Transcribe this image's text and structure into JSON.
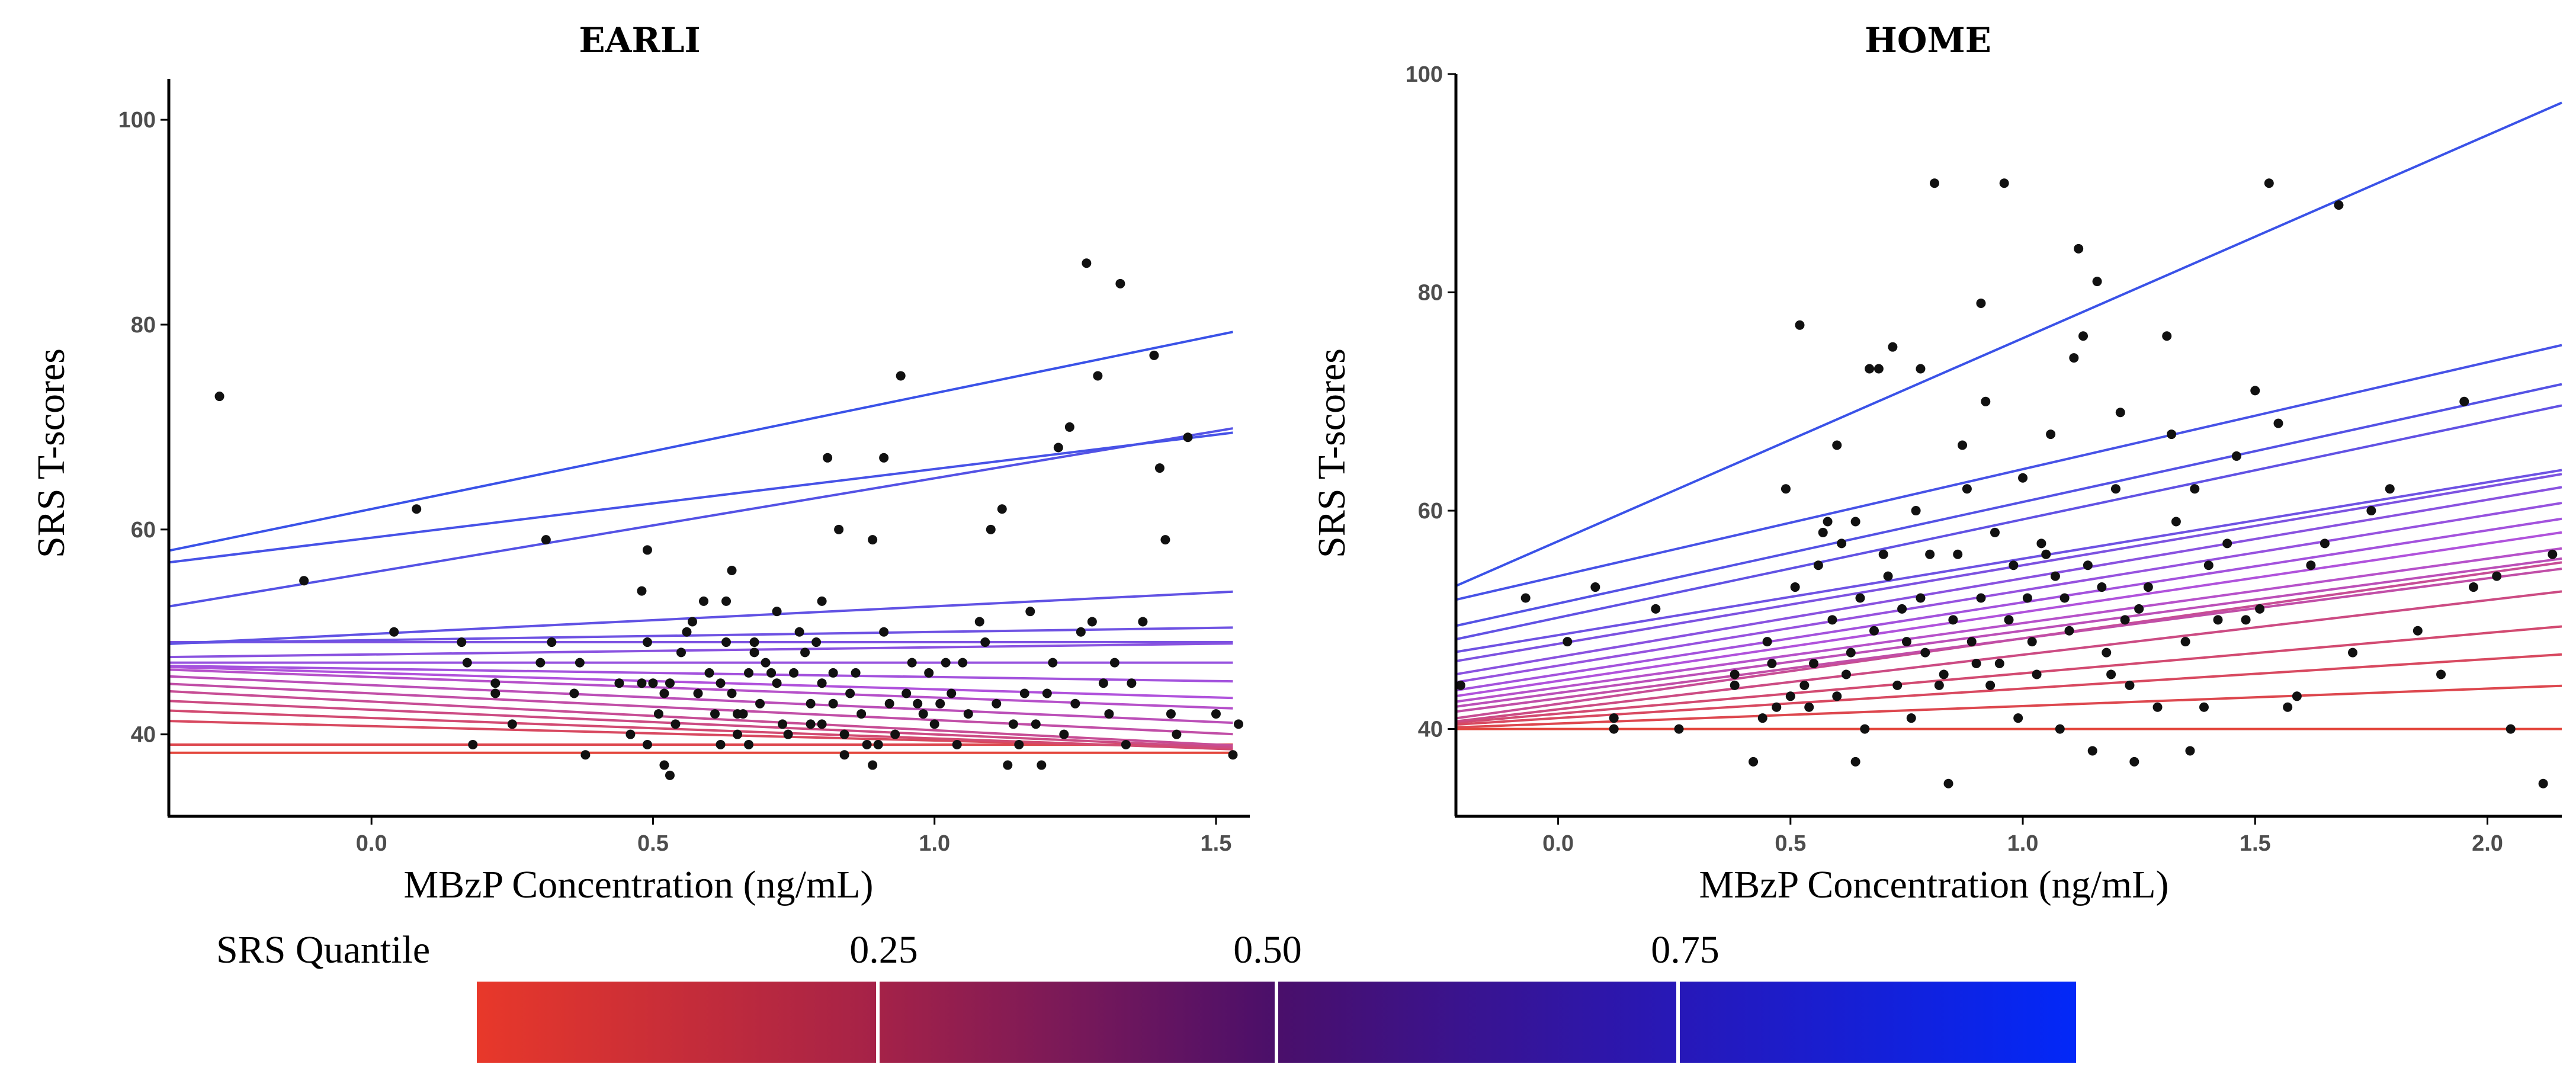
{
  "chart_data": [
    {
      "type": "scatter",
      "title": "EARLI",
      "xlabel": "MBzP Concentration (ng/mL)",
      "ylabel": "SRS T-scores",
      "xlim": [
        -0.36,
        1.56
      ],
      "ylim": [
        32,
        104
      ],
      "xticks": [
        0.0,
        0.5,
        1.0,
        1.5
      ],
      "xtick_labels": [
        "0.0",
        "0.5",
        "1.0",
        "1.5"
      ],
      "yticks": [
        40,
        60,
        80,
        100
      ],
      "ytick_labels": [
        "40",
        "60",
        "80",
        "100"
      ],
      "grid": false,
      "points": [
        [
          -0.27,
          73
        ],
        [
          -0.12,
          55
        ],
        [
          0.04,
          50
        ],
        [
          0.08,
          62
        ],
        [
          0.16,
          49
        ],
        [
          0.17,
          47
        ],
        [
          0.18,
          39
        ],
        [
          0.22,
          45
        ],
        [
          0.22,
          44
        ],
        [
          0.25,
          41
        ],
        [
          0.3,
          47
        ],
        [
          0.31,
          59
        ],
        [
          0.32,
          49
        ],
        [
          0.36,
          44
        ],
        [
          0.37,
          47
        ],
        [
          0.38,
          38
        ],
        [
          0.44,
          45
        ],
        [
          0.46,
          40
        ],
        [
          0.48,
          54
        ],
        [
          0.48,
          45
        ],
        [
          0.49,
          58
        ],
        [
          0.49,
          49
        ],
        [
          0.49,
          39
        ],
        [
          0.5,
          45
        ],
        [
          0.51,
          42
        ],
        [
          0.52,
          44
        ],
        [
          0.52,
          37
        ],
        [
          0.53,
          36
        ],
        [
          0.53,
          45
        ],
        [
          0.54,
          41
        ],
        [
          0.55,
          48
        ],
        [
          0.56,
          50
        ],
        [
          0.57,
          51
        ],
        [
          0.58,
          44
        ],
        [
          0.59,
          53
        ],
        [
          0.6,
          46
        ],
        [
          0.61,
          42
        ],
        [
          0.62,
          39
        ],
        [
          0.62,
          45
        ],
        [
          0.63,
          53
        ],
        [
          0.63,
          49
        ],
        [
          0.64,
          56
        ],
        [
          0.64,
          44
        ],
        [
          0.65,
          42
        ],
        [
          0.65,
          40
        ],
        [
          0.66,
          42
        ],
        [
          0.67,
          46
        ],
        [
          0.67,
          39
        ],
        [
          0.68,
          48
        ],
        [
          0.68,
          49
        ],
        [
          0.69,
          43
        ],
        [
          0.7,
          47
        ],
        [
          0.71,
          46
        ],
        [
          0.72,
          52
        ],
        [
          0.72,
          45
        ],
        [
          0.73,
          41
        ],
        [
          0.74,
          40
        ],
        [
          0.75,
          46
        ],
        [
          0.76,
          50
        ],
        [
          0.77,
          48
        ],
        [
          0.78,
          41
        ],
        [
          0.78,
          43
        ],
        [
          0.79,
          49
        ],
        [
          0.8,
          41
        ],
        [
          0.8,
          45
        ],
        [
          0.8,
          53
        ],
        [
          0.81,
          67
        ],
        [
          0.82,
          43
        ],
        [
          0.82,
          46
        ],
        [
          0.83,
          60
        ],
        [
          0.84,
          40
        ],
        [
          0.84,
          38
        ],
        [
          0.85,
          44
        ],
        [
          0.86,
          46
        ],
        [
          0.87,
          42
        ],
        [
          0.88,
          39
        ],
        [
          0.89,
          59
        ],
        [
          0.89,
          37
        ],
        [
          0.9,
          39
        ],
        [
          0.91,
          67
        ],
        [
          0.91,
          50
        ],
        [
          0.92,
          43
        ],
        [
          0.93,
          40
        ],
        [
          0.94,
          75
        ],
        [
          0.95,
          44
        ],
        [
          0.96,
          47
        ],
        [
          0.97,
          43
        ],
        [
          0.98,
          42
        ],
        [
          0.99,
          46
        ],
        [
          1.0,
          41
        ],
        [
          1.01,
          43
        ],
        [
          1.02,
          47
        ],
        [
          1.03,
          44
        ],
        [
          1.04,
          39
        ],
        [
          1.05,
          47
        ],
        [
          1.06,
          42
        ],
        [
          1.08,
          51
        ],
        [
          1.09,
          49
        ],
        [
          1.1,
          60
        ],
        [
          1.11,
          43
        ],
        [
          1.12,
          62
        ],
        [
          1.13,
          37
        ],
        [
          1.14,
          41
        ],
        [
          1.15,
          39
        ],
        [
          1.16,
          44
        ],
        [
          1.17,
          52
        ],
        [
          1.18,
          41
        ],
        [
          1.19,
          37
        ],
        [
          1.2,
          44
        ],
        [
          1.21,
          47
        ],
        [
          1.22,
          68
        ],
        [
          1.23,
          40
        ],
        [
          1.24,
          70
        ],
        [
          1.25,
          43
        ],
        [
          1.26,
          50
        ],
        [
          1.27,
          86
        ],
        [
          1.28,
          51
        ],
        [
          1.29,
          75
        ],
        [
          1.3,
          45
        ],
        [
          1.31,
          42
        ],
        [
          1.32,
          47
        ],
        [
          1.33,
          84
        ],
        [
          1.34,
          39
        ],
        [
          1.35,
          45
        ],
        [
          1.37,
          51
        ],
        [
          1.39,
          77
        ],
        [
          1.4,
          66
        ],
        [
          1.41,
          59
        ],
        [
          1.42,
          42
        ],
        [
          1.43,
          40
        ],
        [
          1.45,
          69
        ],
        [
          1.5,
          42
        ],
        [
          1.53,
          38
        ],
        [
          1.54,
          41
        ]
      ],
      "quantile_lines": {
        "x_range": [
          -0.36,
          1.53
        ],
        "intercepts": [
          38.2,
          39.0,
          40.8,
          41.6,
          42.4,
          43.2,
          44.0,
          44.8,
          45.6,
          46.0,
          46.4,
          47.0,
          47.8,
          49.0,
          49.2,
          49.8,
          55.8,
          59.2,
          62.0
        ],
        "slopes": [
          0.0,
          0.0,
          -1.4,
          -2.0,
          -2.4,
          -2.8,
          -2.6,
          -2.4,
          -2.0,
          -1.6,
          -0.8,
          0.0,
          0.7,
          0.0,
          0.8,
          2.7,
          9.2,
          6.7,
          11.3
        ]
      }
    },
    {
      "type": "scatter",
      "title": "HOME",
      "xlabel": "MBzP Concentration (ng/mL)",
      "ylabel": "SRS T-scores",
      "xlim": [
        -0.22,
        2.16
      ],
      "ylim": [
        32,
        100
      ],
      "xticks": [
        0.0,
        0.5,
        1.0,
        1.5,
        2.0
      ],
      "xtick_labels": [
        "0.0",
        "0.5",
        "1.0",
        "1.5",
        "2.0"
      ],
      "yticks": [
        40,
        60,
        80,
        100
      ],
      "ytick_labels": [
        "40",
        "60",
        "80",
        "100"
      ],
      "grid": false,
      "points": [
        [
          -0.21,
          44
        ],
        [
          -0.07,
          52
        ],
        [
          0.02,
          48
        ],
        [
          0.08,
          53
        ],
        [
          0.12,
          40
        ],
        [
          0.12,
          41
        ],
        [
          0.21,
          51
        ],
        [
          0.26,
          40
        ],
        [
          0.38,
          45
        ],
        [
          0.38,
          44
        ],
        [
          0.42,
          37
        ],
        [
          0.44,
          41
        ],
        [
          0.45,
          48
        ],
        [
          0.46,
          46
        ],
        [
          0.47,
          42
        ],
        [
          0.49,
          62
        ],
        [
          0.5,
          43
        ],
        [
          0.51,
          53
        ],
        [
          0.52,
          77
        ],
        [
          0.53,
          44
        ],
        [
          0.54,
          42
        ],
        [
          0.55,
          46
        ],
        [
          0.56,
          55
        ],
        [
          0.57,
          58
        ],
        [
          0.58,
          59
        ],
        [
          0.59,
          50
        ],
        [
          0.6,
          66
        ],
        [
          0.6,
          43
        ],
        [
          0.61,
          57
        ],
        [
          0.62,
          45
        ],
        [
          0.63,
          47
        ],
        [
          0.64,
          59
        ],
        [
          0.64,
          37
        ],
        [
          0.65,
          52
        ],
        [
          0.66,
          40
        ],
        [
          0.67,
          73
        ],
        [
          0.68,
          49
        ],
        [
          0.69,
          73
        ],
        [
          0.7,
          56
        ],
        [
          0.71,
          54
        ],
        [
          0.72,
          75
        ],
        [
          0.73,
          44
        ],
        [
          0.74,
          51
        ],
        [
          0.75,
          48
        ],
        [
          0.76,
          41
        ],
        [
          0.77,
          60
        ],
        [
          0.78,
          73
        ],
        [
          0.78,
          52
        ],
        [
          0.79,
          47
        ],
        [
          0.8,
          56
        ],
        [
          0.81,
          90
        ],
        [
          0.82,
          44
        ],
        [
          0.83,
          45
        ],
        [
          0.84,
          35
        ],
        [
          0.85,
          50
        ],
        [
          0.86,
          56
        ],
        [
          0.87,
          66
        ],
        [
          0.88,
          62
        ],
        [
          0.89,
          48
        ],
        [
          0.9,
          46
        ],
        [
          0.91,
          79
        ],
        [
          0.91,
          52
        ],
        [
          0.92,
          70
        ],
        [
          0.93,
          44
        ],
        [
          0.94,
          58
        ],
        [
          0.95,
          46
        ],
        [
          0.96,
          90
        ],
        [
          0.97,
          50
        ],
        [
          0.98,
          55
        ],
        [
          0.99,
          41
        ],
        [
          1.0,
          63
        ],
        [
          1.01,
          52
        ],
        [
          1.02,
          48
        ],
        [
          1.03,
          45
        ],
        [
          1.04,
          57
        ],
        [
          1.05,
          56
        ],
        [
          1.06,
          67
        ],
        [
          1.07,
          54
        ],
        [
          1.08,
          40
        ],
        [
          1.09,
          52
        ],
        [
          1.1,
          49
        ],
        [
          1.11,
          74
        ],
        [
          1.12,
          84
        ],
        [
          1.13,
          76
        ],
        [
          1.14,
          55
        ],
        [
          1.15,
          38
        ],
        [
          1.16,
          81
        ],
        [
          1.17,
          53
        ],
        [
          1.18,
          47
        ],
        [
          1.19,
          45
        ],
        [
          1.2,
          62
        ],
        [
          1.21,
          69
        ],
        [
          1.22,
          50
        ],
        [
          1.23,
          44
        ],
        [
          1.24,
          37
        ],
        [
          1.25,
          51
        ],
        [
          1.27,
          53
        ],
        [
          1.29,
          42
        ],
        [
          1.31,
          76
        ],
        [
          1.32,
          67
        ],
        [
          1.33,
          59
        ],
        [
          1.35,
          48
        ],
        [
          1.36,
          38
        ],
        [
          1.37,
          62
        ],
        [
          1.39,
          42
        ],
        [
          1.4,
          55
        ],
        [
          1.42,
          50
        ],
        [
          1.44,
          57
        ],
        [
          1.46,
          65
        ],
        [
          1.48,
          50
        ],
        [
          1.5,
          71
        ],
        [
          1.51,
          51
        ],
        [
          1.53,
          90
        ],
        [
          1.55,
          68
        ],
        [
          1.57,
          42
        ],
        [
          1.59,
          43
        ],
        [
          1.62,
          55
        ],
        [
          1.65,
          57
        ],
        [
          1.68,
          88
        ],
        [
          1.71,
          47
        ],
        [
          1.75,
          60
        ],
        [
          1.79,
          62
        ],
        [
          1.85,
          49
        ],
        [
          1.9,
          45
        ],
        [
          1.95,
          70
        ],
        [
          1.97,
          53
        ],
        [
          2.02,
          54
        ],
        [
          2.05,
          40
        ],
        [
          2.12,
          35
        ],
        [
          2.14,
          56
        ]
      ],
      "quantile_lines": {
        "x_range": [
          -0.22,
          2.16
        ],
        "intercepts": [
          40.0,
          40.5,
          41.0,
          41.4,
          41.8,
          42.3,
          42.8,
          43.3,
          43.8,
          44.4,
          45.0,
          45.8,
          46.6,
          47.8,
          48.6,
          50.2,
          51.5,
          54.0,
          57.2
        ],
        "slopes": [
          0.0,
          1.6,
          2.7,
          3.7,
          5.0,
          6.0,
          5.5,
          5.7,
          5.9,
          6.3,
          6.6,
          6.9,
          7.2,
          7.2,
          7.0,
          9.0,
          9.3,
          9.8,
          18.6
        ]
      }
    }
  ],
  "legend": {
    "title": "SRS Quantile",
    "tick_labels": [
      "0.25",
      "0.50",
      "0.75"
    ],
    "ticks": [
      0.25,
      0.5,
      0.75
    ],
    "color_low": "#e8382a",
    "color_mid": "#4a0f6a",
    "color_high": "#0228f8",
    "placement": "bottom"
  }
}
